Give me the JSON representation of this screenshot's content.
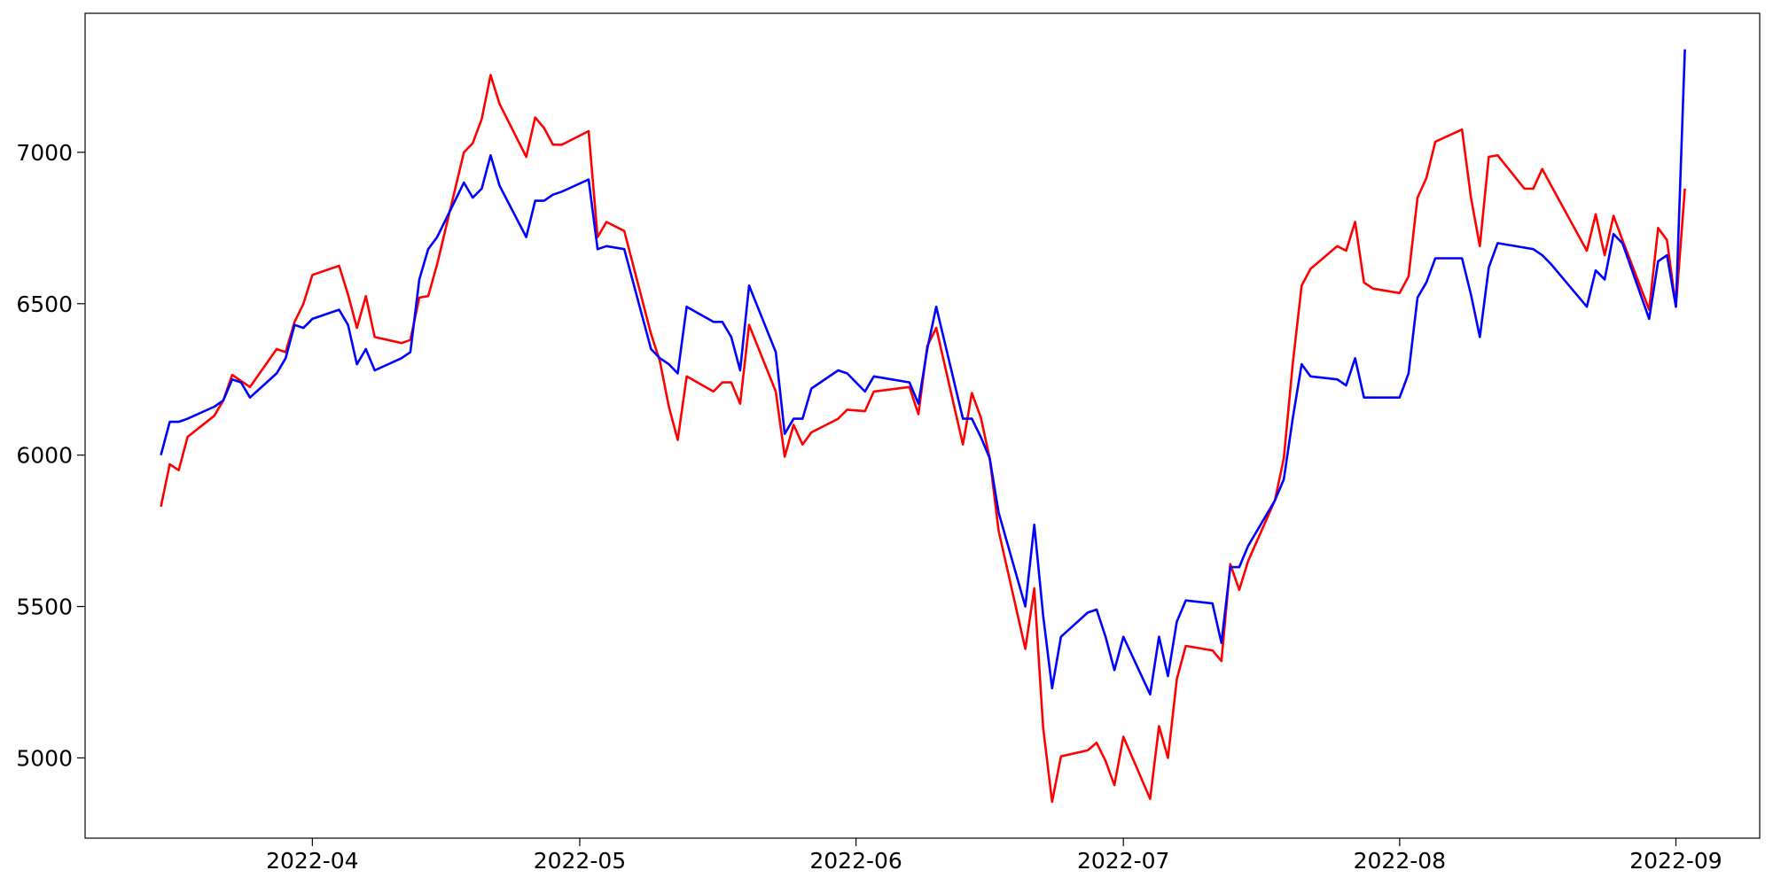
{
  "chart_data": {
    "type": "line",
    "x": [
      14,
      15,
      16,
      17,
      20,
      21,
      22,
      23,
      24,
      27,
      28,
      29,
      30,
      31,
      34,
      35,
      36,
      37,
      38,
      41,
      42,
      43,
      44,
      45,
      48,
      49,
      50,
      51,
      52,
      55,
      56,
      57,
      58,
      59,
      62,
      63,
      64,
      66,
      69,
      70,
      71,
      72,
      73,
      76,
      77,
      78,
      79,
      80,
      83,
      84,
      85,
      86,
      87,
      90,
      91,
      93,
      94,
      98,
      99,
      100,
      101,
      104,
      105,
      106,
      107,
      108,
      111,
      112,
      113,
      114,
      115,
      118,
      119,
      120,
      121,
      122,
      125,
      126,
      127,
      128,
      129,
      132,
      133,
      134,
      135,
      136,
      139,
      140,
      141,
      142,
      143,
      146,
      147,
      148,
      149,
      150,
      153,
      154,
      155,
      156,
      157,
      160,
      161,
      162,
      163,
      164,
      167,
      168,
      169,
      170,
      174,
      175,
      176,
      177,
      178,
      181,
      182,
      183,
      184,
      185
    ],
    "series": [
      {
        "color": "#ff0000",
        "values": [
          5830,
          5970,
          5950,
          6060,
          6130,
          6180,
          6265,
          6245,
          6225,
          6350,
          6340,
          6440,
          6500,
          6595,
          6625,
          6530,
          6420,
          6525,
          6390,
          6370,
          6380,
          6520,
          6525,
          6630,
          7000,
          7030,
          7110,
          7255,
          7160,
          6985,
          7115,
          7080,
          7025,
          7025,
          7070,
          6720,
          6770,
          6740,
          6400,
          6310,
          6160,
          6050,
          6260,
          6210,
          6240,
          6240,
          6170,
          6430,
          6210,
          5995,
          6100,
          6035,
          6075,
          6120,
          6150,
          6145,
          6210,
          6225,
          6135,
          6360,
          6420,
          6035,
          6205,
          6125,
          5990,
          5750,
          5360,
          5560,
          5100,
          4855,
          5005,
          5025,
          5050,
          4990,
          4910,
          5070,
          4865,
          5105,
          5000,
          5260,
          5370,
          5355,
          5320,
          5640,
          5555,
          5650,
          5850,
          5990,
          6300,
          6560,
          6615,
          6690,
          6675,
          6770,
          6570,
          6550,
          6535,
          6590,
          6850,
          6915,
          7035,
          7075,
          6850,
          6690,
          6985,
          6990,
          6880,
          6880,
          6945,
          6890,
          6675,
          6795,
          6660,
          6790,
          6710,
          6480,
          6750,
          6710,
          6490,
          6880
        ]
      },
      {
        "color": "#0000ff",
        "values": [
          6000,
          6110,
          6110,
          6120,
          6160,
          6180,
          6250,
          6240,
          6190,
          6270,
          6320,
          6430,
          6420,
          6450,
          6480,
          6430,
          6300,
          6350,
          6280,
          6320,
          6340,
          6580,
          6680,
          6720,
          6900,
          6850,
          6880,
          6990,
          6890,
          6720,
          6840,
          6840,
          6860,
          6870,
          6910,
          6680,
          6690,
          6680,
          6350,
          6320,
          6300,
          6270,
          6490,
          6440,
          6440,
          6390,
          6280,
          6560,
          6340,
          6070,
          6120,
          6120,
          6220,
          6280,
          6270,
          6210,
          6260,
          6240,
          6170,
          6350,
          6490,
          6120,
          6120,
          6060,
          5990,
          5810,
          5500,
          5770,
          5470,
          5230,
          5400,
          5480,
          5490,
          5400,
          5290,
          5400,
          5210,
          5400,
          5270,
          5450,
          5520,
          5510,
          5380,
          5630,
          5630,
          5700,
          5850,
          5920,
          6120,
          6300,
          6260,
          6250,
          6230,
          6320,
          6190,
          6190,
          6190,
          6270,
          6520,
          6570,
          6650,
          6650,
          6530,
          6390,
          6620,
          6700,
          6685,
          6680,
          6660,
          6630,
          6490,
          6610,
          6580,
          6730,
          6700,
          6450,
          6640,
          6660,
          6490,
          7340
        ]
      }
    ],
    "xlim": [
      5.5,
      193.4
    ],
    "xticks": [
      {
        "value": 31,
        "label": "2022-04"
      },
      {
        "value": 61,
        "label": "2022-05"
      },
      {
        "value": 92,
        "label": "2022-06"
      },
      {
        "value": 122,
        "label": "2022-07"
      },
      {
        "value": 153,
        "label": "2022-08"
      },
      {
        "value": 184,
        "label": "2022-09"
      }
    ],
    "ylim": [
      4735,
      7459
    ],
    "yticks": [
      5000,
      5500,
      6000,
      6500,
      7000
    ],
    "grid": false
  }
}
